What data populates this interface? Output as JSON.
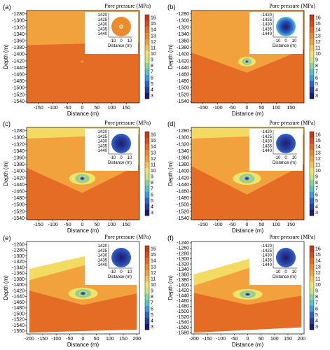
{
  "colorbar": {
    "title": "Pore pressure (MPa)",
    "min": 3,
    "max": 16,
    "ticks": [
      "3",
      "4",
      "5",
      "6",
      "7",
      "8",
      "9",
      "10",
      "11",
      "12",
      "13",
      "14",
      "15",
      "16"
    ],
    "colors": [
      "#1b1d6e",
      "#2a3ea0",
      "#2f66c8",
      "#3aa0dc",
      "#57c4c0",
      "#8ad69a",
      "#c9e57b",
      "#f2e46a",
      "#f6c253",
      "#f1a23c",
      "#ec8a2f",
      "#e46c25",
      "#d94e1c",
      "#c83a16"
    ]
  },
  "chart_data": [
    {
      "type": "heatmap",
      "panel_label": "(a)",
      "xlabel": "Distance (m)",
      "ylabel": "Depth (m)",
      "xlim": [
        -190,
        195
      ],
      "ylim": [
        -1545,
        -1270
      ],
      "xticks": [
        "-150",
        "-100",
        "-50",
        "0",
        "50",
        "100",
        "150"
      ],
      "yticks": [
        "-1280",
        "-1300",
        "-1320",
        "-1340",
        "-1360",
        "-1380",
        "-1400",
        "-1420",
        "-1440",
        "-1460",
        "-1480",
        "-1500",
        "-1520",
        "-1540"
      ],
      "ytick_values": [
        -1280,
        -1300,
        -1320,
        -1340,
        -1360,
        -1380,
        -1400,
        -1420,
        -1440,
        -1460,
        -1480,
        -1500,
        -1520,
        -1540
      ],
      "xtick_values": [
        -150,
        -100,
        -50,
        0,
        50,
        100,
        150
      ],
      "base_colors": {
        "upper": "#f1a23c",
        "lower": "#e46c25"
      },
      "layer_boundary_depth": [
        {
          "x": -190,
          "y": -1373
        },
        {
          "x": 195,
          "y": -1365
        }
      ],
      "plume": {
        "center_x": 0,
        "center_y": -1422,
        "radius_x": 4,
        "radius_y": 2,
        "min_pressure": 12
      },
      "inset": {
        "xticks": [
          "-10",
          "0",
          "10"
        ],
        "yticks": [
          "-1420",
          "-1425",
          "-1430",
          "-1435",
          "-1440"
        ],
        "xlabel": "Distance (m)",
        "pattern": "small-dot"
      }
    },
    {
      "type": "heatmap",
      "panel_label": "(b)",
      "xlabel": "Distance (m)",
      "ylabel": "Depth (m)",
      "xlim": [
        -190,
        195
      ],
      "ylim": [
        -1545,
        -1270
      ],
      "xticks": [
        "-150",
        "-100",
        "-50",
        "0",
        "50",
        "100",
        "150"
      ],
      "yticks": [
        "-1280",
        "-1300",
        "-1320",
        "-1340",
        "-1360",
        "-1380",
        "-1400",
        "-1420",
        "-1440",
        "-1460",
        "-1480",
        "-1500",
        "-1520",
        "-1540"
      ],
      "ytick_values": [
        -1280,
        -1300,
        -1320,
        -1340,
        -1360,
        -1380,
        -1400,
        -1420,
        -1440,
        -1460,
        -1480,
        -1500,
        -1520,
        -1540
      ],
      "xtick_values": [
        -150,
        -100,
        -50,
        0,
        50,
        100,
        150
      ],
      "base_colors": {
        "upper": "#f1a23c",
        "lower": "#e46c25"
      },
      "layer_boundary_depth": [
        {
          "x": -190,
          "y": -1395
        },
        {
          "x": 0,
          "y": -1455
        },
        {
          "x": 195,
          "y": -1385
        }
      ],
      "plume": {
        "center_x": 0,
        "center_y": -1422,
        "radius_x": 30,
        "radius_y": 14,
        "min_pressure": 3
      },
      "inset": {
        "xticks": [
          "-10",
          "0",
          "10"
        ],
        "yticks": [
          "-1420",
          "-1425",
          "-1430",
          "-1435",
          "-1440"
        ],
        "xlabel": "Distance (m)",
        "pattern": "gradient-disc"
      }
    },
    {
      "type": "heatmap",
      "panel_label": "(c)",
      "xlabel": "Distance (m)",
      "ylabel": "Depth (m)",
      "xlim": [
        -190,
        195
      ],
      "ylim": [
        -1545,
        -1270
      ],
      "xticks": [
        "-150",
        "-100",
        "-50",
        "0",
        "50",
        "100",
        "150"
      ],
      "yticks": [
        "-1280",
        "-1300",
        "-1320",
        "-1340",
        "-1360",
        "-1380",
        "-1400",
        "-1420",
        "-1440",
        "-1460",
        "-1480",
        "-1500",
        "-1520",
        "-1540"
      ],
      "ytick_values": [
        -1280,
        -1300,
        -1320,
        -1340,
        -1360,
        -1380,
        -1400,
        -1420,
        -1440,
        -1460,
        -1480,
        -1500,
        -1520,
        -1540
      ],
      "xtick_values": [
        -150,
        -100,
        -50,
        0,
        50,
        100,
        150
      ],
      "base_colors": {
        "upper": "#f1a23c",
        "lower": "#e46c25"
      },
      "layer_boundary_depth": [
        {
          "x": -190,
          "y": -1390
        },
        {
          "x": 0,
          "y": -1465
        },
        {
          "x": 195,
          "y": -1380
        }
      ],
      "plume": {
        "center_x": 0,
        "center_y": -1422,
        "radius_x": 45,
        "radius_y": 18,
        "min_pressure": 3
      },
      "inset": {
        "xticks": [
          "-10",
          "0",
          "10"
        ],
        "yticks": [
          "-1420",
          "-1425",
          "-1430",
          "-1435",
          "-1440"
        ],
        "xlabel": "Distance (m)",
        "pattern": "blue-disc"
      }
    },
    {
      "type": "heatmap",
      "panel_label": "(d)",
      "xlabel": "Distance (m)",
      "ylabel": "Depth (m)",
      "xlim": [
        -190,
        195
      ],
      "ylim": [
        -1545,
        -1270
      ],
      "xticks": [
        "-150",
        "-100",
        "-50",
        "0",
        "50",
        "100",
        "150"
      ],
      "yticks": [
        "-1280",
        "-1300",
        "-1320",
        "-1340",
        "-1360",
        "-1380",
        "-1400",
        "-1420",
        "-1440",
        "-1460",
        "-1480",
        "-1500",
        "-1520",
        "-1540"
      ],
      "ytick_values": [
        -1280,
        -1300,
        -1320,
        -1340,
        -1360,
        -1380,
        -1400,
        -1420,
        -1440,
        -1460,
        -1480,
        -1500,
        -1520,
        -1540
      ],
      "xtick_values": [
        -150,
        -100,
        -50,
        0,
        50,
        100,
        150
      ],
      "base_colors": {
        "upper": "#f1a23c",
        "lower": "#e46c25"
      },
      "layer_boundary_depth": [
        {
          "x": -190,
          "y": -1385
        },
        {
          "x": 0,
          "y": -1470
        },
        {
          "x": 195,
          "y": -1380
        }
      ],
      "plume": {
        "center_x": 0,
        "center_y": -1422,
        "radius_x": 48,
        "radius_y": 19,
        "min_pressure": 3
      },
      "inset": {
        "xticks": [
          "-10",
          "0",
          "10"
        ],
        "yticks": [
          "-1420",
          "-1425",
          "-1430",
          "-1435",
          "-1440"
        ],
        "xlabel": "Distance (m)",
        "pattern": "blue-disc"
      }
    },
    {
      "type": "heatmap",
      "panel_label": "(e)",
      "xlabel": "Distance (m)",
      "ylabel": "Depth (m)",
      "xlim": [
        -210,
        210
      ],
      "ylim": [
        -1570,
        -1250
      ],
      "xticks": [
        "-200",
        "-150",
        "-100",
        "-50",
        "0",
        "50",
        "100",
        "150",
        "200"
      ],
      "yticks": [
        "-1260",
        "-1280",
        "-1300",
        "-1320",
        "-1340",
        "-1360",
        "-1380",
        "-1400",
        "-1420",
        "-1440",
        "-1460",
        "-1480",
        "-1500",
        "-1520",
        "-1540",
        "-1560"
      ],
      "ytick_values": [
        -1260,
        -1280,
        -1300,
        -1320,
        -1340,
        -1360,
        -1380,
        -1400,
        -1420,
        -1440,
        -1460,
        -1480,
        -1500,
        -1520,
        -1540,
        -1560
      ],
      "xtick_values": [
        -200,
        -150,
        -100,
        -50,
        0,
        50,
        100,
        150,
        200
      ],
      "base_colors": {
        "upper": "#f1a23c",
        "lower": "#e46c25"
      },
      "layer_boundary_depth": [
        {
          "x": -200,
          "y": -1420
        },
        {
          "x": 0,
          "y": -1470
        },
        {
          "x": 200,
          "y": -1430
        }
      ],
      "domain_top": [
        {
          "x": -200,
          "y": -1345
        },
        {
          "x": 200,
          "y": -1260
        }
      ],
      "domain_bottom": [
        {
          "x": -200,
          "y": -1565
        },
        {
          "x": 200,
          "y": -1555
        }
      ],
      "plume": {
        "center_x": 0,
        "center_y": -1430,
        "radius_x": 55,
        "radius_y": 20,
        "min_pressure": 3
      },
      "inset": {
        "xticks": [
          "-10",
          "0",
          "10"
        ],
        "yticks": [
          "-1420",
          "-1425",
          "-1430",
          "-1435",
          "-1440"
        ],
        "xlabel": "Distance (m)",
        "pattern": "blue-disc"
      }
    },
    {
      "type": "heatmap",
      "panel_label": "(f)",
      "xlabel": "Distance (m)",
      "ylabel": "Depth (m)",
      "xlim": [
        -210,
        210
      ],
      "ylim": [
        -1585,
        -1235
      ],
      "xticks": [
        "-200",
        "-150",
        "-100",
        "-50",
        "0",
        "50",
        "100",
        "150",
        "200"
      ],
      "yticks": [
        "-1240",
        "-1260",
        "-1280",
        "-1300",
        "-1320",
        "-1340",
        "-1360",
        "-1380",
        "-1400",
        "-1420",
        "-1440",
        "-1460",
        "-1480",
        "-1500",
        "-1520",
        "-1540",
        "-1560",
        "-1580"
      ],
      "ytick_values": [
        -1240,
        -1260,
        -1280,
        -1300,
        -1320,
        -1340,
        -1360,
        -1380,
        -1400,
        -1420,
        -1440,
        -1460,
        -1480,
        -1500,
        -1520,
        -1540,
        -1560,
        -1580
      ],
      "xtick_values": [
        -200,
        -150,
        -100,
        -50,
        0,
        50,
        100,
        150,
        200
      ],
      "base_colors": {
        "upper": "#f1a23c",
        "lower": "#e46c25"
      },
      "layer_boundary_depth": [
        {
          "x": -200,
          "y": -1430
        },
        {
          "x": 0,
          "y": -1475
        },
        {
          "x": 200,
          "y": -1440
        }
      ],
      "domain_top": [
        {
          "x": -200,
          "y": -1360
        },
        {
          "x": 200,
          "y": -1245
        }
      ],
      "domain_bottom": [
        {
          "x": -200,
          "y": -1580
        },
        {
          "x": 200,
          "y": -1560
        }
      ],
      "plume": {
        "center_x": 0,
        "center_y": -1435,
        "radius_x": 55,
        "radius_y": 20,
        "min_pressure": 3
      },
      "inset": {
        "xticks": [
          "-10",
          "0",
          "10"
        ],
        "yticks": [
          "-1420",
          "-1425",
          "-1430",
          "-1435",
          "-1440"
        ],
        "xlabel": "Distance (m)",
        "pattern": "blue-disc"
      }
    }
  ]
}
